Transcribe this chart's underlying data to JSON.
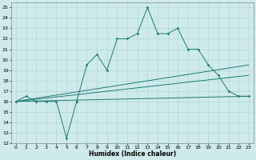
{
  "xlabel": "Humidex (Indice chaleur)",
  "xlim": [
    -0.5,
    23.5
  ],
  "ylim": [
    12,
    25.5
  ],
  "xticks": [
    0,
    1,
    2,
    3,
    4,
    5,
    6,
    7,
    8,
    9,
    10,
    11,
    12,
    13,
    14,
    15,
    16,
    17,
    18,
    19,
    20,
    21,
    22,
    23
  ],
  "yticks": [
    12,
    13,
    14,
    15,
    16,
    17,
    18,
    19,
    20,
    21,
    22,
    23,
    24,
    25
  ],
  "bg_color": "#ceeaea",
  "grid_color": "#b0d8d8",
  "line_color": "#1e7a72",
  "series1_x": [
    0,
    1,
    2,
    3,
    4,
    5,
    6,
    7,
    8,
    9,
    10,
    11,
    12,
    13,
    14,
    15,
    16,
    17,
    18,
    19,
    20,
    21,
    22,
    23
  ],
  "series1_y": [
    16,
    16.5,
    16,
    16,
    16,
    12.5,
    16,
    19.5,
    20.5,
    19,
    22,
    22,
    22.5,
    25,
    22.5,
    22.5,
    23,
    21,
    21,
    19.5,
    18.5,
    17,
    16.5,
    16.5
  ],
  "series2_x": [
    0,
    23
  ],
  "series2_y": [
    16,
    19.5
  ],
  "series3_x": [
    0,
    23
  ],
  "series3_y": [
    16,
    18.5
  ],
  "series4_x": [
    0,
    23
  ],
  "series4_y": [
    16,
    16.5
  ]
}
